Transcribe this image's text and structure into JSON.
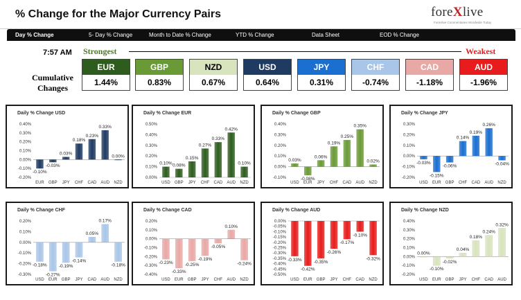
{
  "header": {
    "title": "% Change for the Major Currency Pairs",
    "logo_main": "fore",
    "logo_x": "X",
    "logo_end": "live",
    "logo_tagline": "Forexlive Commentaries Wordwide Today"
  },
  "nav": {
    "tabs": [
      "Day % Change",
      "5- Day % Change",
      "Month to Date % Change",
      "YTD % Change",
      "Data Sheet",
      "EOD % Change"
    ]
  },
  "summary": {
    "time": "7:57 AM",
    "strongest_label": "Strongest",
    "weakest_label": "Weakest",
    "cumulative_label": "Cumulative Changes",
    "currencies": [
      {
        "code": "EUR",
        "value": "1.44%",
        "color": "#2e5c1e"
      },
      {
        "code": "GBP",
        "value": "0.83%",
        "color": "#6a9a36"
      },
      {
        "code": "NZD",
        "value": "0.67%",
        "color": "#d7e4bd"
      },
      {
        "code": "USD",
        "value": "0.64%",
        "color": "#1f3b62"
      },
      {
        "code": "JPY",
        "value": "0.31%",
        "color": "#1a6fd0"
      },
      {
        "code": "CHF",
        "value": "-0.74%",
        "color": "#a9c6e8"
      },
      {
        "code": "CAD",
        "value": "-1.18%",
        "color": "#e8a8a6"
      },
      {
        "code": "AUD",
        "value": "-1.96%",
        "color": "#e81c1c"
      }
    ]
  },
  "chart_data": [
    {
      "type": "bar",
      "title": "Daily % Change USD",
      "categories": [
        "EUR",
        "GBP",
        "JPY",
        "CHF",
        "CAD",
        "AUD",
        "NZD"
      ],
      "values": [
        -0.1,
        -0.03,
        0.03,
        0.18,
        0.23,
        0.33,
        0.0
      ],
      "labels": [
        "-0.10%",
        "-0.03%",
        "0.03%",
        "0.18%",
        "0.23%",
        "0.33%",
        "0.00%"
      ],
      "yticks": [
        "0.40%",
        "0.30%",
        "0.20%",
        "0.10%",
        "0.00%",
        "-0.10%",
        "-0.20%"
      ],
      "ylim": [
        -0.2,
        0.4
      ],
      "color": "#1f3b62",
      "grid": false
    },
    {
      "type": "bar",
      "title": "Daily % Change EUR",
      "categories": [
        "USD",
        "GBP",
        "JPY",
        "CHF",
        "CAD",
        "AUD",
        "NZD"
      ],
      "values": [
        0.1,
        0.08,
        0.15,
        0.27,
        0.33,
        0.42,
        0.1
      ],
      "labels": [
        "0.10%",
        "0.08%",
        "0.15%",
        "0.27%",
        "0.33%",
        "0.42%",
        "0.10%"
      ],
      "yticks": [
        "0.50%",
        "0.40%",
        "0.30%",
        "0.20%",
        "0.10%",
        "0.00%"
      ],
      "ylim": [
        0.0,
        0.5
      ],
      "color": "#2e5c1e",
      "grid": false
    },
    {
      "type": "bar",
      "title": "Daily % Change GBP",
      "categories": [
        "USD",
        "EUR",
        "JPY",
        "CHF",
        "CAD",
        "AUD",
        "NZD"
      ],
      "values": [
        0.03,
        -0.08,
        0.06,
        0.19,
        0.25,
        0.35,
        0.02
      ],
      "labels": [
        "0.03%",
        "-0.08%",
        "0.06%",
        "0.19%",
        "0.25%",
        "0.35%",
        "0.02%"
      ],
      "yticks": [
        "0.40%",
        "0.30%",
        "0.20%",
        "0.10%",
        "0.00%",
        "-0.10%"
      ],
      "ylim": [
        -0.1,
        0.4
      ],
      "color": "#6a9a36",
      "grid": false
    },
    {
      "type": "bar",
      "title": "Daily % Change JPY",
      "categories": [
        "USD",
        "EUR",
        "GBP",
        "CHF",
        "CAD",
        "AUD",
        "NZD"
      ],
      "values": [
        -0.03,
        -0.15,
        -0.06,
        0.14,
        0.19,
        0.26,
        -0.04
      ],
      "labels": [
        "-0.03%",
        "-0.15%",
        "-0.06%",
        "0.14%",
        "0.19%",
        "0.26%",
        "-0.04%"
      ],
      "yticks": [
        "0.30%",
        "0.20%",
        "0.10%",
        "0.00%",
        "-0.10%",
        "-0.20%"
      ],
      "ylim": [
        -0.2,
        0.3
      ],
      "color": "#1a6fd0",
      "grid": false
    },
    {
      "type": "bar",
      "title": "Daily % Change CHF",
      "categories": [
        "USD",
        "EUR",
        "GBP",
        "JPY",
        "CAD",
        "AUD",
        "NZD"
      ],
      "values": [
        -0.18,
        -0.27,
        -0.19,
        -0.14,
        0.05,
        0.17,
        -0.18
      ],
      "labels": [
        "-0.18%",
        "-0.27%",
        "-0.19%",
        "-0.14%",
        "0.05%",
        "0.17%",
        "-0.18%"
      ],
      "yticks": [
        "0.20%",
        "0.10%",
        "0.00%",
        "-0.10%",
        "-0.20%",
        "-0.30%"
      ],
      "ylim": [
        -0.3,
        0.2
      ],
      "color": "#a9c6e8",
      "grid": false
    },
    {
      "type": "bar",
      "title": "Daily % Change CAD",
      "categories": [
        "USD",
        "EUR",
        "GBP",
        "JPY",
        "CHF",
        "AUD",
        "NZD"
      ],
      "values": [
        -0.23,
        -0.33,
        -0.25,
        -0.19,
        -0.05,
        0.1,
        -0.24
      ],
      "labels": [
        "-0.23%",
        "-0.33%",
        "-0.25%",
        "-0.19%",
        "-0.05%",
        "0.10%",
        "-0.24%"
      ],
      "yticks": [
        "0.20%",
        "0.10%",
        "0.00%",
        "-0.10%",
        "-0.20%",
        "-0.30%",
        "-0.40%"
      ],
      "ylim": [
        -0.4,
        0.2
      ],
      "color": "#e8a8a6",
      "grid": false
    },
    {
      "type": "bar",
      "title": "Daily % Change AUD",
      "categories": [
        "USD",
        "EUR",
        "GBP",
        "JPY",
        "CHF",
        "CAD",
        "NZD"
      ],
      "values": [
        -0.33,
        -0.42,
        -0.35,
        -0.26,
        -0.17,
        -0.1,
        -0.32
      ],
      "labels": [
        "-0.33%",
        "-0.42%",
        "-0.35%",
        "-0.26%",
        "-0.17%",
        "-0.10%",
        "-0.32%"
      ],
      "yticks": [
        "0.00%",
        "-0.05%",
        "-0.10%",
        "-0.15%",
        "-0.20%",
        "-0.25%",
        "-0.30%",
        "-0.35%",
        "-0.40%",
        "-0.45%",
        "-0.50%"
      ],
      "ylim": [
        -0.5,
        0.0
      ],
      "color": "#e81c1c",
      "grid": false
    },
    {
      "type": "bar",
      "title": "Daily % Change NZD",
      "categories": [
        "USD",
        "EUR",
        "GBP",
        "JPY",
        "CHF",
        "CAD",
        "AUD"
      ],
      "values": [
        0.0,
        -0.1,
        -0.02,
        0.04,
        0.18,
        0.24,
        0.32
      ],
      "labels": [
        "0.00%",
        "-0.10%",
        "-0.02%",
        "0.04%",
        "0.18%",
        "0.24%",
        "0.32%"
      ],
      "yticks": [
        "0.40%",
        "0.30%",
        "0.20%",
        "0.10%",
        "0.00%",
        "-0.10%",
        "-0.20%"
      ],
      "ylim": [
        -0.2,
        0.4
      ],
      "color": "#d7e4bd",
      "grid": false
    }
  ]
}
